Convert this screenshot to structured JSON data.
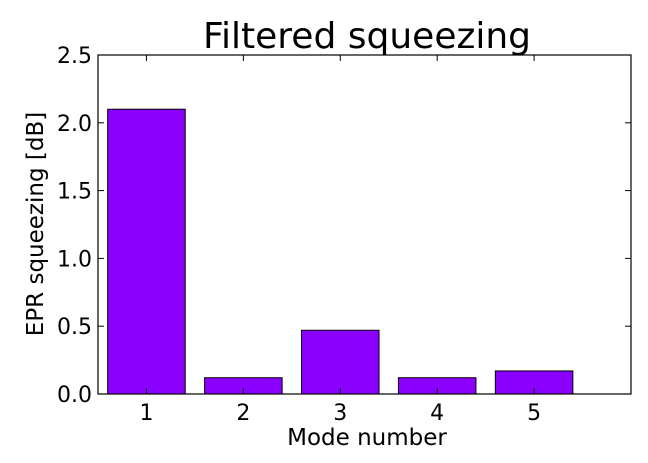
{
  "chart_data": {
    "type": "bar",
    "title": "Filtered squeezing",
    "xlabel": "Mode number",
    "ylabel": "EPR squeezing [dB]",
    "categories": [
      "1",
      "2",
      "3",
      "4",
      "5"
    ],
    "values": [
      2.1,
      0.12,
      0.47,
      0.12,
      0.17
    ],
    "ylim": [
      0,
      2.5
    ],
    "yticks": [
      "0.0",
      "0.5",
      "1.0",
      "1.5",
      "2.0",
      "2.5"
    ],
    "grid": false,
    "bar_color": "#8b00ff"
  }
}
